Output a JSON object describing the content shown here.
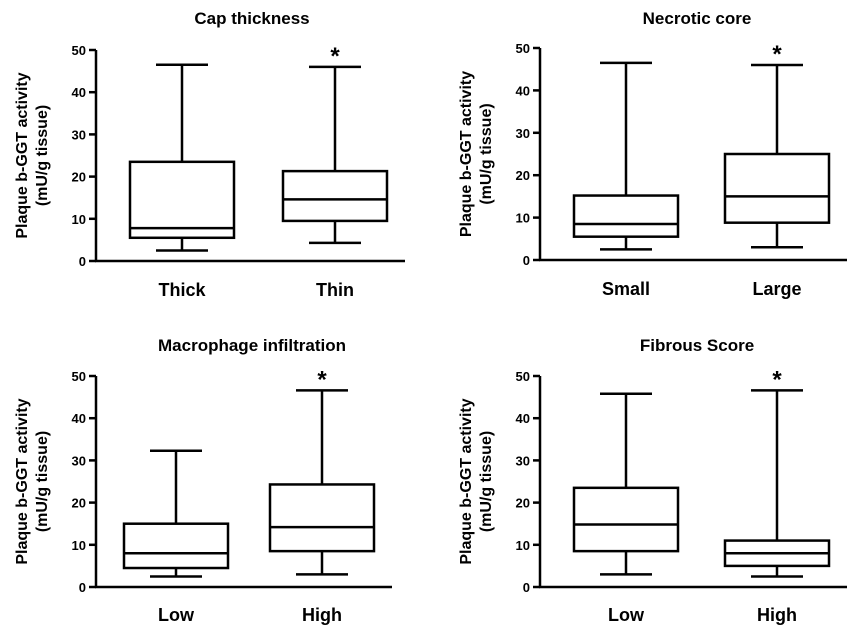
{
  "chart_data": [
    {
      "type": "box",
      "title": "Cap thickness",
      "ylabel_line1": "Plaque b-GGT activity",
      "ylabel_line2": "(mU/g tissue)",
      "ylim": [
        0,
        50
      ],
      "yticks": [
        "0",
        "10",
        "20",
        "30",
        "40",
        "50"
      ],
      "categories": [
        "Thick",
        "Thin"
      ],
      "boxes": [
        {
          "min": 2.5,
          "q1": 5.5,
          "median": 7.8,
          "q3": 23.5,
          "max": 46.5,
          "significance": ""
        },
        {
          "min": 4.3,
          "q1": 9.5,
          "median": 14.6,
          "q3": 21.3,
          "max": 46.0,
          "significance": "*"
        }
      ]
    },
    {
      "type": "box",
      "title": "Necrotic core",
      "ylabel_line1": "Plaque b-GGT activity",
      "ylabel_line2": "(mU/g tissue)",
      "ylim": [
        0,
        50
      ],
      "yticks": [
        "0",
        "10",
        "20",
        "30",
        "40",
        "50"
      ],
      "categories": [
        "Small",
        "Large"
      ],
      "boxes": [
        {
          "min": 2.5,
          "q1": 5.5,
          "median": 8.5,
          "q3": 15.2,
          "max": 46.5,
          "significance": ""
        },
        {
          "min": 3.0,
          "q1": 8.8,
          "median": 15.0,
          "q3": 25.0,
          "max": 46.0,
          "significance": "*"
        }
      ]
    },
    {
      "type": "box",
      "title": "Macrophage infiltration",
      "ylabel_line1": "Plaque b-GGT activity",
      "ylabel_line2": "(mU/g tissue)",
      "ylim": [
        0,
        50
      ],
      "yticks": [
        "0",
        "10",
        "20",
        "30",
        "40",
        "50"
      ],
      "categories": [
        "Low",
        "High"
      ],
      "boxes": [
        {
          "min": 2.5,
          "q1": 4.5,
          "median": 8.0,
          "q3": 15.0,
          "max": 32.3,
          "significance": ""
        },
        {
          "min": 3.0,
          "q1": 8.5,
          "median": 14.2,
          "q3": 24.3,
          "max": 46.6,
          "significance": "*"
        }
      ]
    },
    {
      "type": "box",
      "title": "Fibrous Score",
      "ylabel_line1": "Plaque b-GGT activity",
      "ylabel_line2": "(mU/g tissue)",
      "ylim": [
        0,
        50
      ],
      "yticks": [
        "0",
        "10",
        "20",
        "30",
        "40",
        "50"
      ],
      "categories": [
        "Low",
        "High"
      ],
      "boxes": [
        {
          "min": 3.0,
          "q1": 8.5,
          "median": 14.8,
          "q3": 23.5,
          "max": 45.8,
          "significance": ""
        },
        {
          "min": 2.5,
          "q1": 5.0,
          "median": 8.0,
          "q3": 11.0,
          "max": 46.6,
          "significance": "*"
        }
      ]
    }
  ]
}
